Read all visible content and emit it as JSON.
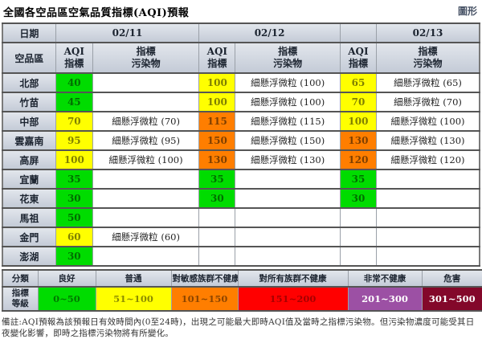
{
  "page": {
    "title": "全國各空品區空氣品質指標(AQI)預報",
    "graphic_link_label": "圖形"
  },
  "table": {
    "date_header_label": "日期",
    "region_header_label": "空品區",
    "aqi_col_label": "AQI\n指標",
    "pollutant_col_label": "指標\n污染物",
    "dates": [
      "02/11",
      "02/12",
      "02/13"
    ],
    "rows": [
      {
        "region": "北部",
        "cells": [
          {
            "aqi": "40",
            "level": "green",
            "pollutant": ""
          },
          {
            "aqi": "100",
            "level": "yellow",
            "pollutant": "細懸浮微粒 (100)"
          },
          {
            "aqi": "65",
            "level": "yellow",
            "pollutant": "細懸浮微粒 (65)"
          }
        ]
      },
      {
        "region": "竹苗",
        "cells": [
          {
            "aqi": "45",
            "level": "green",
            "pollutant": ""
          },
          {
            "aqi": "100",
            "level": "yellow",
            "pollutant": "細懸浮微粒 (100)"
          },
          {
            "aqi": "70",
            "level": "yellow",
            "pollutant": "細懸浮微粒 (70)"
          }
        ]
      },
      {
        "region": "中部",
        "cells": [
          {
            "aqi": "70",
            "level": "yellow",
            "pollutant": "細懸浮微粒 (70)"
          },
          {
            "aqi": "115",
            "level": "orange",
            "pollutant": "細懸浮微粒 (115)"
          },
          {
            "aqi": "100",
            "level": "yellow",
            "pollutant": "細懸浮微粒 (100)"
          }
        ]
      },
      {
        "region": "雲嘉南",
        "cells": [
          {
            "aqi": "95",
            "level": "yellow",
            "pollutant": "細懸浮微粒 (95)"
          },
          {
            "aqi": "150",
            "level": "orange",
            "pollutant": "細懸浮微粒 (150)"
          },
          {
            "aqi": "130",
            "level": "orange",
            "pollutant": "細懸浮微粒 (130)"
          }
        ]
      },
      {
        "region": "高屏",
        "cells": [
          {
            "aqi": "100",
            "level": "yellow",
            "pollutant": "細懸浮微粒 (100)"
          },
          {
            "aqi": "130",
            "level": "orange",
            "pollutant": "細懸浮微粒 (130)"
          },
          {
            "aqi": "120",
            "level": "orange",
            "pollutant": "細懸浮微粒 (120)"
          }
        ]
      },
      {
        "region": "宜蘭",
        "cells": [
          {
            "aqi": "35",
            "level": "green",
            "pollutant": ""
          },
          {
            "aqi": "35",
            "level": "green",
            "pollutant": ""
          },
          {
            "aqi": "35",
            "level": "green",
            "pollutant": ""
          }
        ]
      },
      {
        "region": "花東",
        "cells": [
          {
            "aqi": "30",
            "level": "green",
            "pollutant": ""
          },
          {
            "aqi": "30",
            "level": "green",
            "pollutant": ""
          },
          {
            "aqi": "30",
            "level": "green",
            "pollutant": ""
          }
        ]
      },
      {
        "region": "馬祖",
        "cells": [
          {
            "aqi": "50",
            "level": "green",
            "pollutant": ""
          },
          {
            "aqi": "",
            "level": null,
            "pollutant": ""
          },
          {
            "aqi": "",
            "level": null,
            "pollutant": ""
          }
        ]
      },
      {
        "region": "金門",
        "cells": [
          {
            "aqi": "60",
            "level": "yellow",
            "pollutant": "細懸浮微粒 (60)"
          },
          {
            "aqi": "",
            "level": null,
            "pollutant": ""
          },
          {
            "aqi": "",
            "level": null,
            "pollutant": ""
          }
        ]
      },
      {
        "region": "澎湖",
        "cells": [
          {
            "aqi": "30",
            "level": "green",
            "pollutant": ""
          },
          {
            "aqi": "",
            "level": null,
            "pollutant": ""
          },
          {
            "aqi": "",
            "level": null,
            "pollutant": ""
          }
        ]
      }
    ]
  },
  "level_colors": {
    "green": "#00DC00",
    "yellow": "#FFFF00",
    "orange": "#FF7E00",
    "red": "#FF0000",
    "purple": "#9C50A4",
    "maroon": "#83082A"
  },
  "legend": {
    "category_label": "分類",
    "level_label": "指標\n等級",
    "items": [
      {
        "name": "良好",
        "range": "0~50",
        "color": "#00DC00",
        "text_color": "rgba(0,0,0,0.45)"
      },
      {
        "name": "普通",
        "range": "51~100",
        "color": "#FFFF00",
        "text_color": "rgba(0,0,0,0.45)"
      },
      {
        "name": "對敏感族群不健康",
        "range": "101~150",
        "color": "#FF7E00",
        "text_color": "rgba(0,0,0,0.45)"
      },
      {
        "name": "對所有族群不健康",
        "range": "151~200",
        "color": "#FF0000",
        "text_color": "rgba(0,0,0,0.35)"
      },
      {
        "name": "非常不健康",
        "range": "201~300",
        "color": "#9C50A4",
        "text_color": "#ffffff"
      },
      {
        "name": "危害",
        "range": "301~500",
        "color": "#83082A",
        "text_color": "#ffffff"
      }
    ]
  },
  "note": "備註:AQI預報為該預報日有效時間內(0至24時)，出現之可能最大即時AQI值及當時之指標污染物。但污染物濃度可能受其日夜變化影響，即時之指標污染物將有所變化。"
}
